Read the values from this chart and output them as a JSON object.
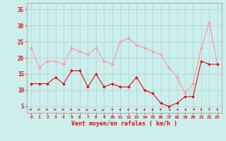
{
  "hours": [
    0,
    1,
    2,
    3,
    4,
    5,
    6,
    7,
    8,
    9,
    10,
    11,
    12,
    13,
    14,
    15,
    16,
    17,
    18,
    19,
    20,
    21,
    22,
    23
  ],
  "wind_avg": [
    12,
    12,
    12,
    14,
    12,
    16,
    16,
    11,
    15,
    11,
    12,
    11,
    11,
    14,
    10,
    9,
    6,
    5,
    6,
    8,
    8,
    19,
    18,
    18
  ],
  "wind_gust": [
    23,
    17,
    19,
    19,
    18,
    23,
    22,
    21,
    23,
    19,
    18,
    25,
    26,
    24,
    23,
    22,
    21,
    17,
    14,
    9,
    12,
    23,
    31,
    18
  ],
  "bg_color": "#cceeed",
  "grid_color": "#aad4d4",
  "avg_color": "#dd1111",
  "gust_color": "#ff9999",
  "xlabel": "Vent moyen/en rafales ( km/h )",
  "ylabel_ticks": [
    5,
    10,
    15,
    20,
    25,
    30,
    35
  ],
  "ylim": [
    3,
    37
  ],
  "xlim": [
    -0.5,
    23.5
  ],
  "arrow_dirs": [
    0,
    0,
    0,
    0,
    0,
    0,
    30,
    40,
    50,
    50,
    60,
    70,
    70,
    70,
    80,
    90,
    120,
    150,
    160,
    180,
    225,
    270,
    270,
    270
  ]
}
